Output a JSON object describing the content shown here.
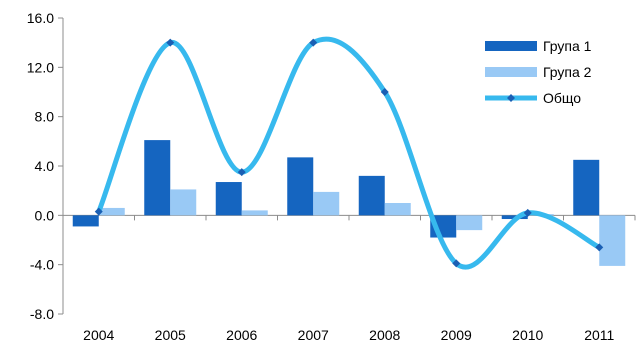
{
  "chart_data": {
    "type": "bar",
    "title": "",
    "xlabel": "",
    "ylabel": "",
    "categories": [
      "2004",
      "2005",
      "2006",
      "2007",
      "2008",
      "2009",
      "2010",
      "2011"
    ],
    "ylim": [
      -8,
      16
    ],
    "yticks": [
      "16.0",
      "12.0",
      "8.0",
      "4.0",
      "0.0",
      "-4.0",
      "-8.0"
    ],
    "ytick_values": [
      16,
      12,
      8,
      4,
      0,
      -4,
      -8
    ],
    "grid": false,
    "legend_position": "top-right",
    "series": [
      {
        "name": "Група 1",
        "kind": "bar",
        "color": "#1565C0",
        "values": [
          -0.9,
          6.1,
          2.7,
          4.7,
          3.2,
          -1.8,
          -0.3,
          4.5
        ]
      },
      {
        "name": "Група 2",
        "kind": "bar",
        "color": "#99C9F5",
        "values": [
          0.6,
          2.1,
          0.4,
          1.9,
          1.0,
          -1.2,
          0.1,
          -4.1
        ]
      },
      {
        "name": "Общо",
        "kind": "line",
        "smooth": true,
        "marker": "diamond",
        "color": "#37B9EE",
        "marker_color": "#1A5FB4",
        "values": [
          0.3,
          14.0,
          3.5,
          14.0,
          10.0,
          -3.9,
          0.2,
          -2.6
        ]
      }
    ]
  }
}
